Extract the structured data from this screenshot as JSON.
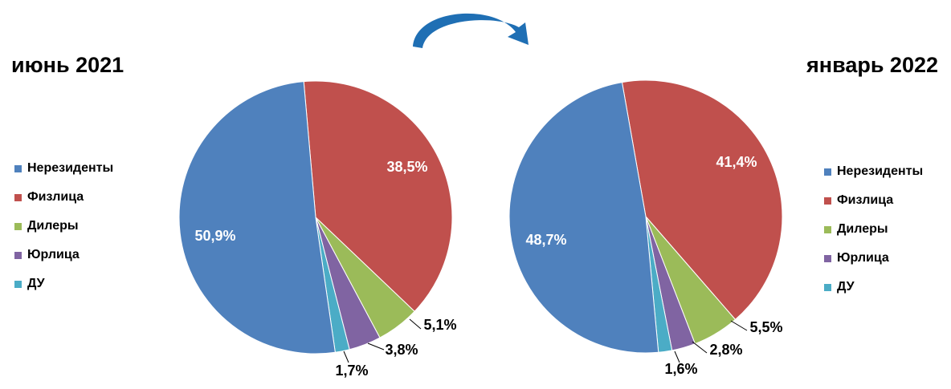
{
  "colors": {
    "Нерезиденты": "#4f81bd",
    "Физлица": "#c0504d",
    "Дилеры": "#9bbb59",
    "Юрлица": "#8064a2",
    "ДУ": "#4bacc6",
    "arrow": "#1f6fb4"
  },
  "chart_data": [
    {
      "type": "pie",
      "title": "июнь 2021",
      "legend": "left",
      "categories": [
        "Нерезиденты",
        "Физлица",
        "Дилеры",
        "Юрлица",
        "ДУ"
      ],
      "values": [
        50.9,
        38.5,
        5.1,
        3.8,
        1.7
      ],
      "labels": [
        "50,9%",
        "38,5%",
        "5,1%",
        "3,8%",
        "1,7%"
      ]
    },
    {
      "type": "pie",
      "title": "январь 2022",
      "legend": "right",
      "categories": [
        "Нерезиденты",
        "Физлица",
        "Дилеры",
        "Юрлица",
        "ДУ"
      ],
      "values": [
        48.7,
        41.4,
        5.5,
        2.8,
        1.6
      ],
      "labels": [
        "48,7%",
        "41,4%",
        "5,5%",
        "2,8%",
        "1,6%"
      ]
    }
  ],
  "decoration": {
    "arrow": "curved-arrow-icon"
  }
}
